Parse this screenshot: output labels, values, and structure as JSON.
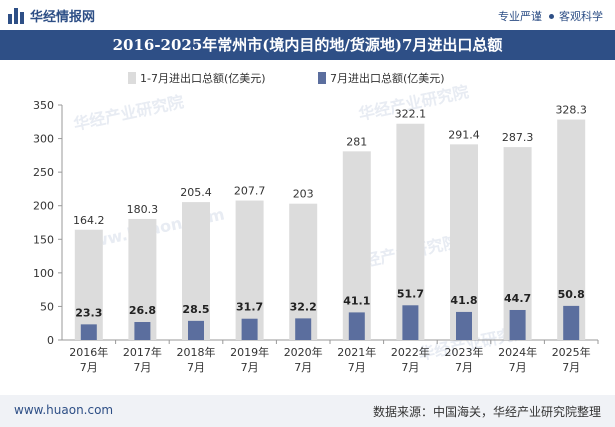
{
  "header": {
    "brand": "华经情报网",
    "right_1": "专业严谨",
    "right_2": "客观科学"
  },
  "title": "2016-2025年常州市(境内目的地/货源地)7月进出口总额",
  "footer": {
    "website": "www.huaon.com",
    "source": "数据来源：中国海关，华经产业研究院整理"
  },
  "watermarks": [
    "华经产业研究院",
    "www.huaon.com"
  ],
  "colors": {
    "header_blue": "#2e4f86",
    "cumulative": "#dcdcdc",
    "monthly": "#5b6e9e"
  },
  "chart_data": {
    "type": "bar",
    "categories": [
      "2016年\n7月",
      "2017年\n7月",
      "2018年\n7月",
      "2019年\n7月",
      "2020年\n7月",
      "2021年\n7月",
      "2022年\n7月",
      "2023年\n7月",
      "2024年\n7月",
      "2025年\n7月"
    ],
    "series": [
      {
        "name": "1-7月进出口总额(亿美元)",
        "values": [
          164.2,
          180.3,
          205.4,
          207.7,
          203,
          281,
          322.1,
          291.4,
          287.3,
          328.3
        ]
      },
      {
        "name": "7月进出口总额(亿美元)",
        "values": [
          23.3,
          26.8,
          28.5,
          31.7,
          32.2,
          41.1,
          51.7,
          41.8,
          44.7,
          50.8
        ]
      }
    ],
    "yticks": [
      0,
      50,
      100,
      150,
      200,
      250,
      300,
      350
    ],
    "ylim": [
      0,
      350
    ],
    "legend": "top",
    "grid": false
  }
}
